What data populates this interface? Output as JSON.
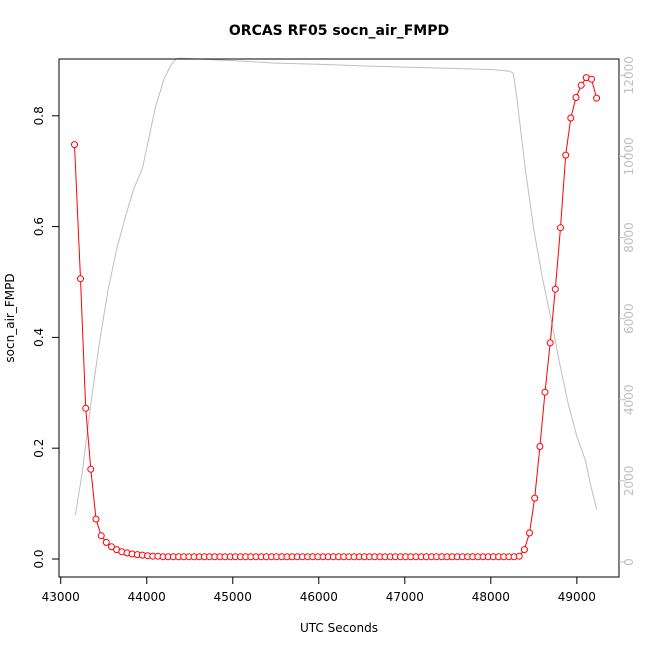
{
  "chart_data": {
    "type": "line",
    "title": "ORCAS RF05 socn_air_FMPD",
    "xlabel": "UTC Seconds",
    "ylabel": "socn_air_FMPD",
    "y2label": "",
    "xlim": [
      42980,
      49490
    ],
    "ylim": [
      -0.0325,
      0.9025
    ],
    "y2lim": [
      -370,
      12400
    ],
    "x_ticks": [
      43000,
      44000,
      45000,
      46000,
      47000,
      48000,
      49000
    ],
    "y_ticks": [
      0.0,
      0.2,
      0.4,
      0.6,
      0.8
    ],
    "y2_ticks": [
      0,
      2000,
      4000,
      6000,
      8000,
      10000,
      12000
    ],
    "x_tick_labels": [
      "43000",
      "44000",
      "45000",
      "46000",
      "47000",
      "48000",
      "49000"
    ],
    "y_tick_labels": [
      "0.0",
      "0.2",
      "0.4",
      "0.6",
      "0.8"
    ],
    "y2_tick_labels": [
      "0",
      "2000",
      "4000",
      "6000",
      "8000",
      "10000",
      "12000"
    ],
    "grid": false,
    "legend": "none",
    "colors": {
      "series": "#ff0000",
      "secondary": "#bebebe",
      "axis": "#000000"
    },
    "series": [
      {
        "axis": "left",
        "style": "line+circles",
        "x": [
          43160,
          43230,
          43290,
          43350,
          43410,
          43470,
          43530,
          43590,
          43650,
          43710,
          43770,
          43830,
          43890,
          43950,
          44010,
          44070,
          44130,
          44190,
          44250,
          44310,
          44370,
          44430,
          44490,
          44550,
          44610,
          44670,
          44730,
          44790,
          44850,
          44910,
          44970,
          45030,
          45090,
          45150,
          45210,
          45270,
          45330,
          45390,
          45450,
          45510,
          45570,
          45630,
          45690,
          45750,
          45810,
          45870,
          45930,
          45990,
          46050,
          46110,
          46170,
          46230,
          46290,
          46350,
          46410,
          46470,
          46530,
          46590,
          46650,
          46710,
          46770,
          46830,
          46890,
          46950,
          47010,
          47070,
          47130,
          47190,
          47250,
          47310,
          47370,
          47430,
          47490,
          47550,
          47610,
          47670,
          47730,
          47790,
          47850,
          47910,
          47970,
          48030,
          48090,
          48150,
          48210,
          48270,
          48330,
          48390,
          48450,
          48510,
          48570,
          48630,
          48690,
          48750,
          48810,
          48870,
          48930,
          48990,
          49050,
          49110,
          49170,
          49230
        ],
        "y": [
          0.748,
          0.506,
          0.272,
          0.162,
          0.072,
          0.042,
          0.03,
          0.022,
          0.017,
          0.013,
          0.011,
          0.009,
          0.008,
          0.007,
          0.006,
          0.005,
          0.005,
          0.004,
          0.004,
          0.004,
          0.004,
          0.004,
          0.004,
          0.004,
          0.004,
          0.004,
          0.004,
          0.004,
          0.004,
          0.004,
          0.004,
          0.004,
          0.004,
          0.004,
          0.004,
          0.004,
          0.004,
          0.004,
          0.004,
          0.004,
          0.004,
          0.004,
          0.004,
          0.004,
          0.004,
          0.004,
          0.004,
          0.004,
          0.004,
          0.004,
          0.004,
          0.004,
          0.004,
          0.004,
          0.004,
          0.004,
          0.004,
          0.004,
          0.004,
          0.004,
          0.004,
          0.004,
          0.004,
          0.004,
          0.004,
          0.004,
          0.004,
          0.004,
          0.004,
          0.004,
          0.004,
          0.004,
          0.004,
          0.004,
          0.004,
          0.004,
          0.004,
          0.004,
          0.004,
          0.004,
          0.004,
          0.004,
          0.004,
          0.004,
          0.004,
          0.004,
          0.005,
          0.017,
          0.047,
          0.11,
          0.203,
          0.301,
          0.39,
          0.487,
          0.598,
          0.729,
          0.796,
          0.833,
          0.855,
          0.869,
          0.866,
          0.832
        ]
      },
      {
        "axis": "right",
        "style": "line",
        "x": [
          43170,
          43250,
          43350,
          43450,
          43550,
          43650,
          43750,
          43850,
          43950,
          44000,
          44100,
          44200,
          44280,
          44340,
          44370,
          44500,
          45000,
          45500,
          46000,
          46500,
          47000,
          47500,
          48000,
          48220,
          48260,
          48300,
          48400,
          48500,
          48600,
          48700,
          48800,
          48900,
          49000,
          49100,
          49160,
          49230
        ],
        "y": [
          1150,
          2200,
          3900,
          5400,
          6700,
          7700,
          8500,
          9200,
          9700,
          10200,
          11200,
          11900,
          12250,
          12400,
          12420,
          12410,
          12360,
          12300,
          12270,
          12230,
          12200,
          12170,
          12140,
          12100,
          12050,
          11500,
          9700,
          8200,
          7000,
          6000,
          4900,
          3900,
          3100,
          2500,
          1900,
          1300
        ]
      }
    ]
  }
}
